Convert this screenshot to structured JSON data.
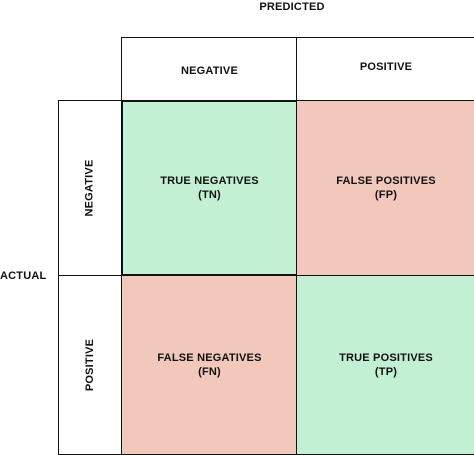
{
  "axes": {
    "predicted_label": "PREDICTED",
    "actual_label": "ACTUAL"
  },
  "columns": {
    "negative": "NEGATIVE",
    "positive": "POSITIVE"
  },
  "rows": {
    "negative": "NEGATIVE",
    "positive": "POSITIVE"
  },
  "cells": {
    "tn": {
      "line1": "TRUE NEGATIVES",
      "line2": "(TN)"
    },
    "fp": {
      "line1": "FALSE POSITIVES",
      "line2": "(FP)"
    },
    "fn": {
      "line1": "FALSE NEGATIVES",
      "line2": "(FN)"
    },
    "tp": {
      "line1": "TRUE POSITIVES",
      "line2": "(TP)"
    }
  },
  "colors": {
    "correct": "#c3f0d2",
    "incorrect": "#f2c7bc",
    "border": "#111111"
  }
}
